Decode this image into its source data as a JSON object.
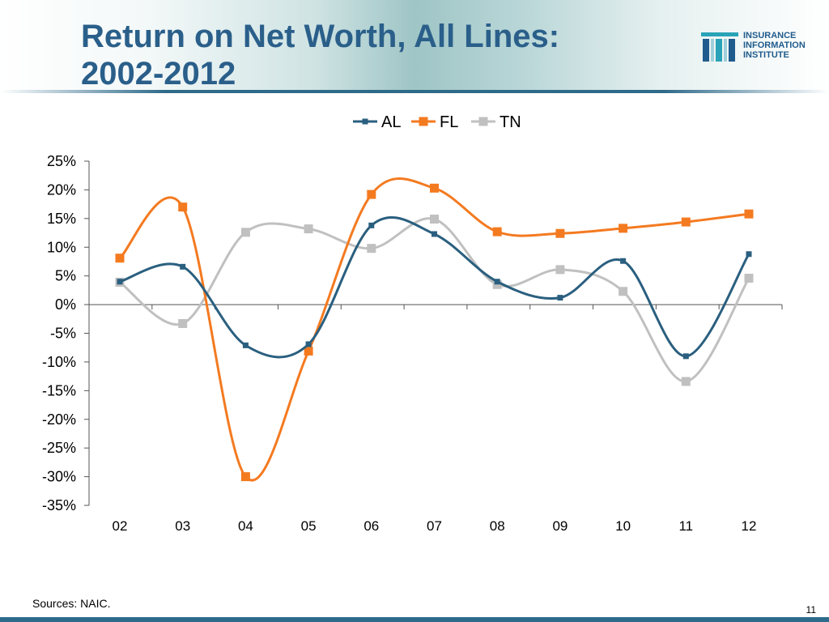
{
  "slide": {
    "title_line1": "Return on Net Worth, All Lines:",
    "title_line2": "2002-2012",
    "logo": {
      "line1": "INSURANCE",
      "line2": "INFORMATION",
      "line3": "INSTITUTE",
      "icon": "iii-logo-icon"
    },
    "source": "Sources: NAIC.",
    "page_number": "11",
    "colors": {
      "title": "#2a5f8a",
      "bar": "#2e6a8a"
    }
  },
  "chart_data": {
    "type": "line",
    "title": "",
    "xlabel": "",
    "ylabel": "",
    "categories": [
      "02",
      "03",
      "04",
      "05",
      "06",
      "07",
      "08",
      "09",
      "10",
      "11",
      "12"
    ],
    "series": [
      {
        "name": "AL",
        "color": "#2a5f7f",
        "marker": "square-small",
        "values": [
          4.0,
          6.6,
          -7.1,
          -6.9,
          13.8,
          12.3,
          4.0,
          1.2,
          7.6,
          -9.0,
          8.8
        ]
      },
      {
        "name": "FL",
        "color": "#f47a20",
        "marker": "square",
        "values": [
          8.1,
          17.0,
          -30.0,
          -8.1,
          19.2,
          20.3,
          12.7,
          12.4,
          13.3,
          14.4,
          15.8
        ]
      },
      {
        "name": "TN",
        "color": "#c0c0c0",
        "marker": "square",
        "values": [
          3.9,
          -3.3,
          12.6,
          13.2,
          9.8,
          14.9,
          3.5,
          6.1,
          2.3,
          -13.4,
          4.6
        ]
      }
    ],
    "ylim": [
      -35,
      25
    ],
    "yticks": [
      25,
      20,
      15,
      10,
      5,
      0,
      -5,
      -10,
      -15,
      -20,
      -25,
      -30,
      -35
    ],
    "ytick_labels": [
      "25%",
      "20%",
      "15%",
      "10%",
      "5%",
      "0%",
      "-5%",
      "-10%",
      "-15%",
      "-20%",
      "-25%",
      "-30%",
      "-35%"
    ],
    "grid": false,
    "legend": "top-center",
    "smooth": true
  }
}
